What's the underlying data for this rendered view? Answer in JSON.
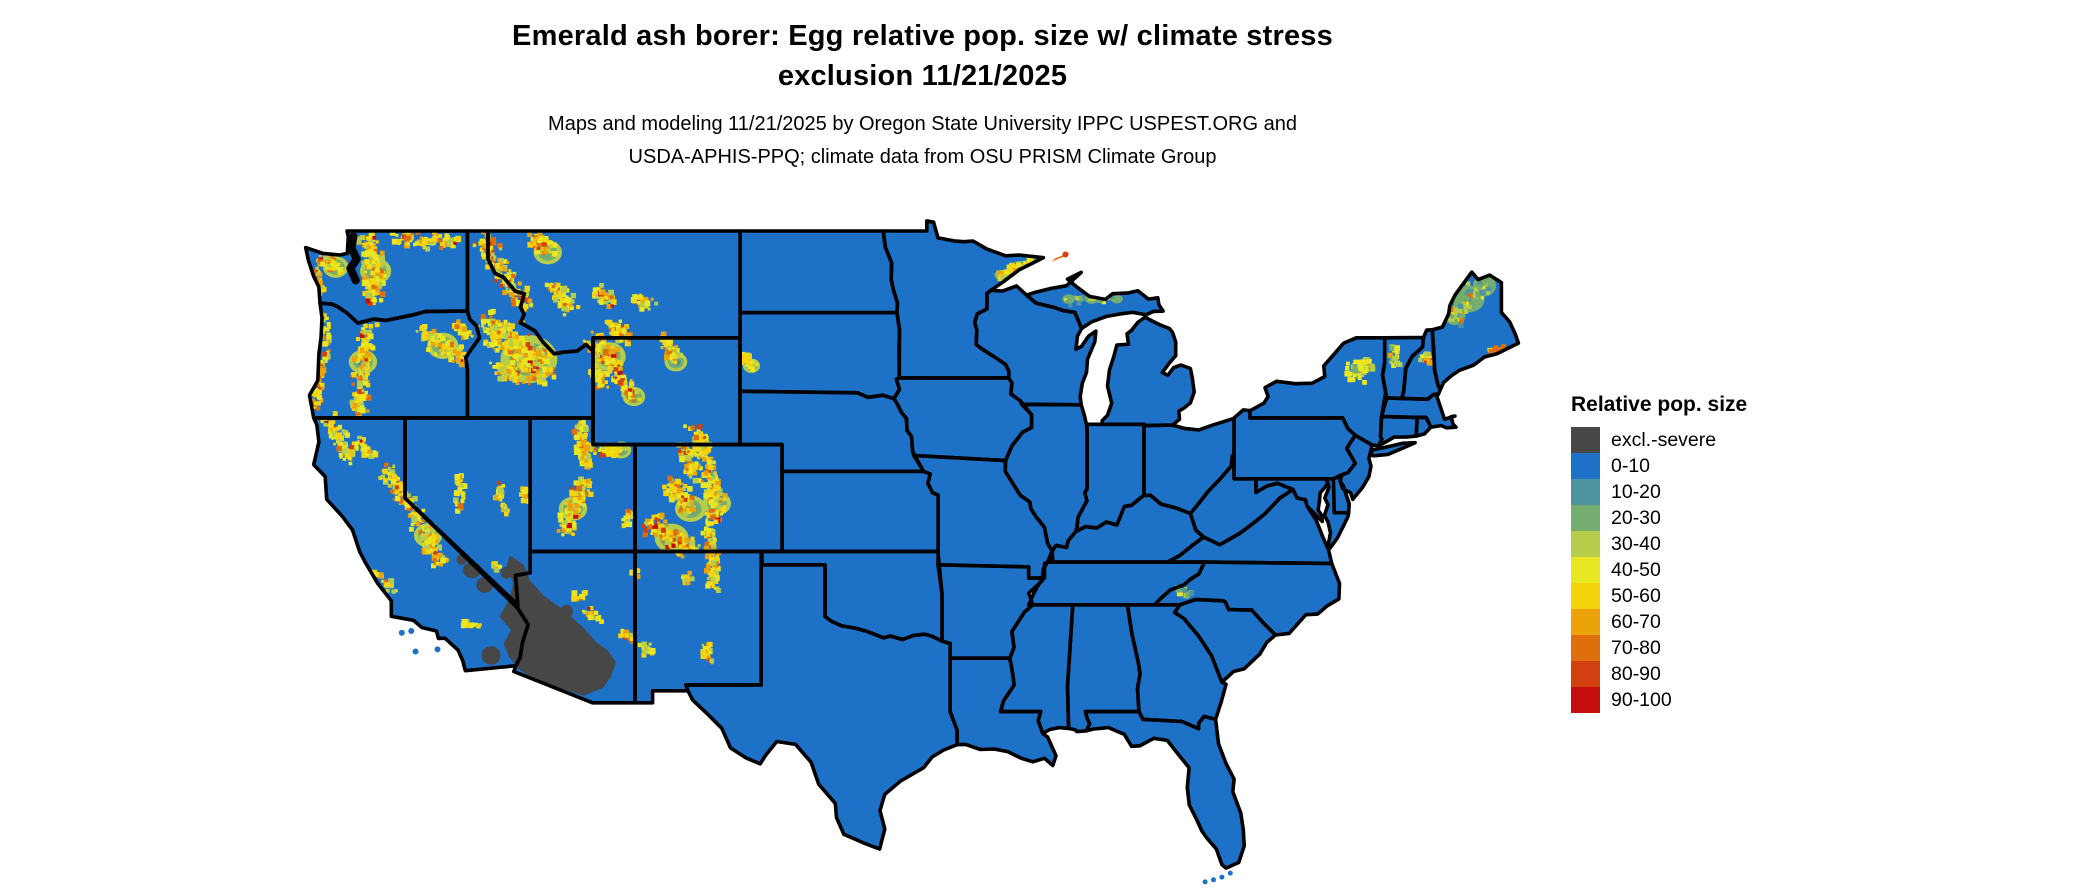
{
  "header": {
    "title_line1": "Emerald ash borer: Egg relative pop. size w/ climate stress",
    "title_line2": "exclusion 11/21/2025",
    "subtitle_line1": "Maps and modeling 11/21/2025 by Oregon State University IPPC USPEST.ORG and",
    "subtitle_line2": "USDA-APHIS-PPQ; climate data from OSU PRISM Climate Group"
  },
  "legend": {
    "title": "Relative pop. size",
    "items": [
      {
        "label": "excl.-severe",
        "color": "#474747"
      },
      {
        "label": "0-10",
        "color": "#1d72c8"
      },
      {
        "label": "10-20",
        "color": "#4e93a0"
      },
      {
        "label": "20-30",
        "color": "#73ad70"
      },
      {
        "label": "30-40",
        "color": "#b5cd4b"
      },
      {
        "label": "40-50",
        "color": "#e9e721"
      },
      {
        "label": "50-60",
        "color": "#f6d40b"
      },
      {
        "label": "60-70",
        "color": "#eca30b"
      },
      {
        "label": "70-80",
        "color": "#de6f0c"
      },
      {
        "label": "80-90",
        "color": "#d2400f"
      },
      {
        "label": "90-100",
        "color": "#c60d0d"
      }
    ]
  },
  "map": {
    "base_color": "#1d72c8",
    "border_color": "#000000",
    "background_color": "#ffffff",
    "water_color": "#ffffff",
    "excluded_region_color": "#474747"
  }
}
